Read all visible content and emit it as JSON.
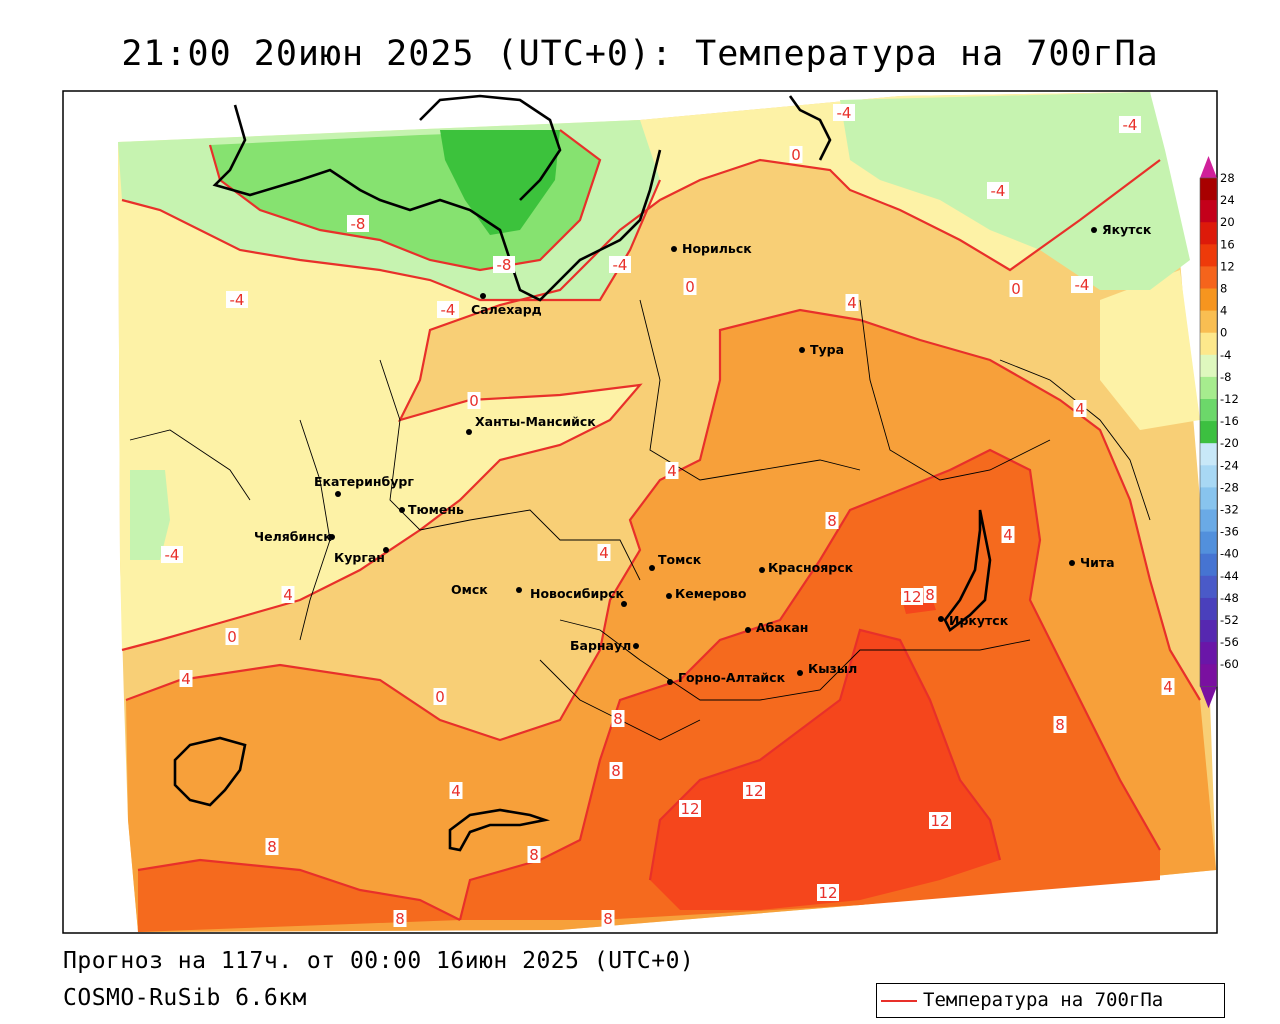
{
  "title": "21:00 20июн 2025 (UTC+0): Температура на 700гПа",
  "footer": {
    "forecast": "Прогноз на 117ч. от 00:00 16июн 2025 (UTC+0)",
    "model": "COSMO-RuSib 6.6км"
  },
  "legend": {
    "label": "Температура на 700гПа",
    "color": "#e8302a"
  },
  "colorbar": {
    "labels": [
      "28",
      "24",
      "20",
      "16",
      "12",
      "8",
      "4",
      "0",
      "-4",
      "-8",
      "-12",
      "-16",
      "-20",
      "-24",
      "-28",
      "-32",
      "-36",
      "-40",
      "-44",
      "-48",
      "-52",
      "-56",
      "-60"
    ],
    "colors": [
      "#a80000",
      "#c4001a",
      "#dd1a0a",
      "#ee3a0a",
      "#f5641c",
      "#f6951f",
      "#f9be52",
      "#fde88c",
      "#def8be",
      "#a6ec8e",
      "#6cd86a",
      "#3cc040",
      "#c8e8f8",
      "#a8d8f4",
      "#88c4ee",
      "#6aaae6",
      "#5290dc",
      "#4674d2",
      "#4a5ac8",
      "#4a40bc",
      "#5628b0",
      "#6a16a8",
      "#7a10a0"
    ]
  },
  "colors": {
    "t_ge12": "#f5461c",
    "t_8_12": "#f56a1e",
    "t_4_8": "#f7a03a",
    "t_0_4": "#f8cf76",
    "t_m4_0": "#fdf2a6",
    "t_m8_m4": "#c6f3b0",
    "t_m12_m8": "#86e270",
    "t_m16_m12": "#3cc23c",
    "isoline": "#e8302a",
    "coast": "#000000"
  },
  "cities": [
    {
      "name": "Норильск"
    },
    {
      "name": "Якутск"
    },
    {
      "name": "Салехард"
    },
    {
      "name": "Тура"
    },
    {
      "name": "Ханты-Мансийск"
    },
    {
      "name": "Екатеринбург"
    },
    {
      "name": "Тюмень"
    },
    {
      "name": "Челябинск"
    },
    {
      "name": "Курган"
    },
    {
      "name": "Омск"
    },
    {
      "name": "Новосибирск"
    },
    {
      "name": "Томск"
    },
    {
      "name": "Кемерово"
    },
    {
      "name": "Красноярск"
    },
    {
      "name": "Барнаул"
    },
    {
      "name": "Абакан"
    },
    {
      "name": "Горно-Алтайск"
    },
    {
      "name": "Кызыл"
    },
    {
      "name": "Иркутск"
    },
    {
      "name": "Чита"
    }
  ],
  "isoline_labels": [
    "-8",
    "-8",
    "-4",
    "-4",
    "-4",
    "-4",
    "-4",
    "-4",
    "-4",
    "-4",
    "0",
    "0",
    "0",
    "0",
    "0",
    "0",
    "4",
    "4",
    "4",
    "4",
    "4",
    "4",
    "4",
    "4",
    "4",
    "8",
    "8",
    "8",
    "8",
    "8",
    "8",
    "8",
    "8",
    "8",
    "12",
    "12",
    "12",
    "12",
    "12"
  ]
}
